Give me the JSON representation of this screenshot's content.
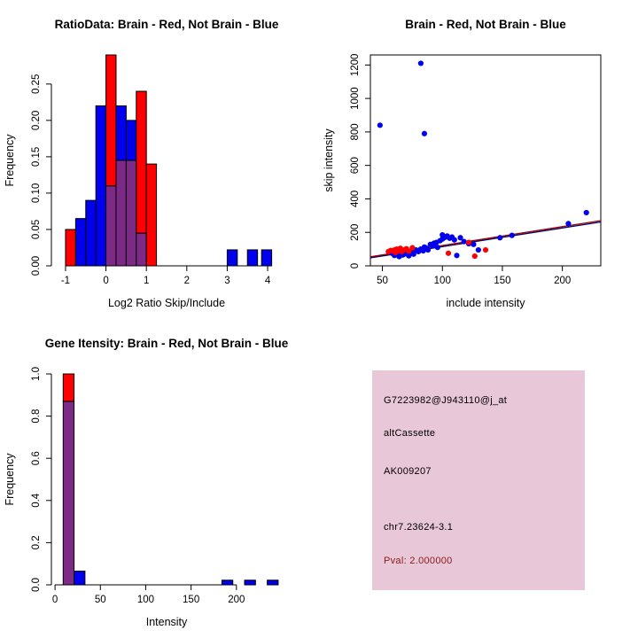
{
  "colors": {
    "red": "#FF0000",
    "blue": "#0000EE",
    "overlap": "#7D2A87",
    "axis": "#000000"
  },
  "chart_data": [
    {
      "type": "bar",
      "id": "ratio_histogram",
      "title": "RatioData: Brain - Red, Not Brain - Blue",
      "xlabel": "Log2 Ratio Skip/Include",
      "ylabel": "Frequency",
      "xlim": [
        -1.35,
        4.35
      ],
      "ylim": [
        0,
        0.29
      ],
      "xticks": [
        -1,
        0,
        1,
        2,
        3,
        4
      ],
      "xtick_labels": [
        "-1",
        "0",
        "1",
        "2",
        "3",
        "4"
      ],
      "yticks": [
        0,
        0.05,
        0.1,
        0.15,
        0.2,
        0.25
      ],
      "ytick_labels": [
        "0.00",
        "0.05",
        "0.10",
        "0.15",
        "0.20",
        "0.25"
      ],
      "legend_note": "red = Brain, blue = Not Brain, purple = overlap",
      "bin_width": 0.25,
      "bins": [
        {
          "x0": -1.0,
          "red": 0.05,
          "blue": 0
        },
        {
          "x0": -0.75,
          "red": 0,
          "blue": 0.065
        },
        {
          "x0": -0.5,
          "red": 0,
          "blue": 0.09
        },
        {
          "x0": -0.25,
          "red": 0,
          "blue": 0.22
        },
        {
          "x0": 0.0,
          "red": 0.29,
          "blue": 0.11
        },
        {
          "x0": 0.25,
          "red": 0.145,
          "blue": 0.22
        },
        {
          "x0": 0.5,
          "red": 0.145,
          "blue": 0.2
        },
        {
          "x0": 0.75,
          "red": 0.24,
          "blue": 0.045
        },
        {
          "x0": 1.0,
          "red": 0.14,
          "blue": 0
        },
        {
          "x0": 3.0,
          "red": 0,
          "blue": 0.022
        },
        {
          "x0": 3.5,
          "red": 0,
          "blue": 0.022
        },
        {
          "x0": 3.85,
          "red": 0,
          "blue": 0.022
        }
      ]
    },
    {
      "type": "scatter",
      "id": "intensity_scatter",
      "title": "Brain - Red, Not Brain - Blue",
      "xlabel": "include intensity",
      "ylabel": "skip intensity",
      "xlim": [
        40,
        232
      ],
      "ylim": [
        0,
        1260
      ],
      "xticks": [
        50,
        100,
        150,
        200
      ],
      "xtick_labels": [
        "50",
        "100",
        "150",
        "200"
      ],
      "yticks": [
        0,
        200,
        400,
        600,
        800,
        1000,
        1200
      ],
      "ytick_labels": [
        "0",
        "200",
        "400",
        "600",
        "800",
        "1000",
        "1200"
      ],
      "box": true,
      "series": [
        {
          "name": "Not Brain",
          "color_key": "blue",
          "points": [
            [
              48,
              840
            ],
            [
              82,
              1210
            ],
            [
              85,
              790
            ],
            [
              58,
              75
            ],
            [
              60,
              62
            ],
            [
              62,
              70
            ],
            [
              64,
              55
            ],
            [
              65,
              80
            ],
            [
              67,
              65
            ],
            [
              69,
              72
            ],
            [
              70,
              88
            ],
            [
              72,
              60
            ],
            [
              74,
              75
            ],
            [
              76,
              70
            ],
            [
              78,
              95
            ],
            [
              80,
              85
            ],
            [
              82,
              100
            ],
            [
              84,
              90
            ],
            [
              85,
              112
            ],
            [
              87,
              105
            ],
            [
              88,
              95
            ],
            [
              90,
              128
            ],
            [
              92,
              120
            ],
            [
              93,
              135
            ],
            [
              95,
              140
            ],
            [
              96,
              110
            ],
            [
              98,
              150
            ],
            [
              100,
              160
            ],
            [
              100,
              185
            ],
            [
              102,
              170
            ],
            [
              104,
              178
            ],
            [
              106,
              165
            ],
            [
              108,
              172
            ],
            [
              110,
              155
            ],
            [
              112,
              62
            ],
            [
              115,
              168
            ],
            [
              118,
              145
            ],
            [
              122,
              132
            ],
            [
              126,
              128
            ],
            [
              130,
              95
            ],
            [
              148,
              168
            ],
            [
              158,
              182
            ],
            [
              205,
              252
            ],
            [
              220,
              318
            ]
          ]
        },
        {
          "name": "Brain",
          "color_key": "red",
          "points": [
            [
              55,
              85
            ],
            [
              57,
              92
            ],
            [
              59,
              88
            ],
            [
              60,
              95
            ],
            [
              61,
              80
            ],
            [
              62,
              100
            ],
            [
              64,
              90
            ],
            [
              65,
              105
            ],
            [
              66,
              85
            ],
            [
              68,
              95
            ],
            [
              70,
              102
            ],
            [
              72,
              88
            ],
            [
              75,
              108
            ],
            [
              105,
              75
            ],
            [
              122,
              140
            ],
            [
              127,
              58
            ],
            [
              136,
              95
            ]
          ]
        }
      ],
      "fit_lines": [
        {
          "x1": 40,
          "y1": 48,
          "x2": 232,
          "y2": 262,
          "color": "#000066"
        },
        {
          "x1": 40,
          "y1": 54,
          "x2": 232,
          "y2": 270,
          "color": "#990000"
        }
      ]
    },
    {
      "type": "bar",
      "id": "gene_intensity_histogram",
      "title": "Gene Itensity: Brain - Red, Not Brain - Blue",
      "xlabel": "Intensity",
      "ylabel": "Frequency",
      "xlim": [
        -4,
        250
      ],
      "ylim": [
        0,
        1.0
      ],
      "xticks": [
        0,
        50,
        100,
        150,
        200
      ],
      "xtick_labels": [
        "0",
        "50",
        "100",
        "150",
        "200"
      ],
      "yticks": [
        0,
        0.2,
        0.4,
        0.6,
        0.8,
        1.0
      ],
      "ytick_labels": [
        "0.0",
        "0.2",
        "0.4",
        "0.6",
        "0.8",
        "1.0"
      ],
      "legend_note": "red = Brain, blue = Not Brain, purple = overlap",
      "bin_width": 12,
      "bins": [
        {
          "x0": 9,
          "red": 1.0,
          "blue": 0.87
        },
        {
          "x0": 21,
          "red": 0,
          "blue": 0.065
        },
        {
          "x0": 184,
          "red": 0,
          "blue": 0.022
        },
        {
          "x0": 209,
          "red": 0,
          "blue": 0.022
        },
        {
          "x0": 234,
          "red": 0,
          "blue": 0.022
        }
      ]
    }
  ],
  "info_panel": {
    "background": "#E8C7D8",
    "lines": [
      {
        "text": "G7223982@J943110@j_at",
        "color": "#000000"
      },
      {
        "text": "altCassette",
        "color": "#000000"
      },
      {
        "text": "AK009207",
        "color": "#000000"
      },
      {
        "text": "chr7.23624-3.1",
        "color": "#000000"
      },
      {
        "text": "Pval: 2.000000",
        "color": "#8B1A1A"
      }
    ]
  }
}
